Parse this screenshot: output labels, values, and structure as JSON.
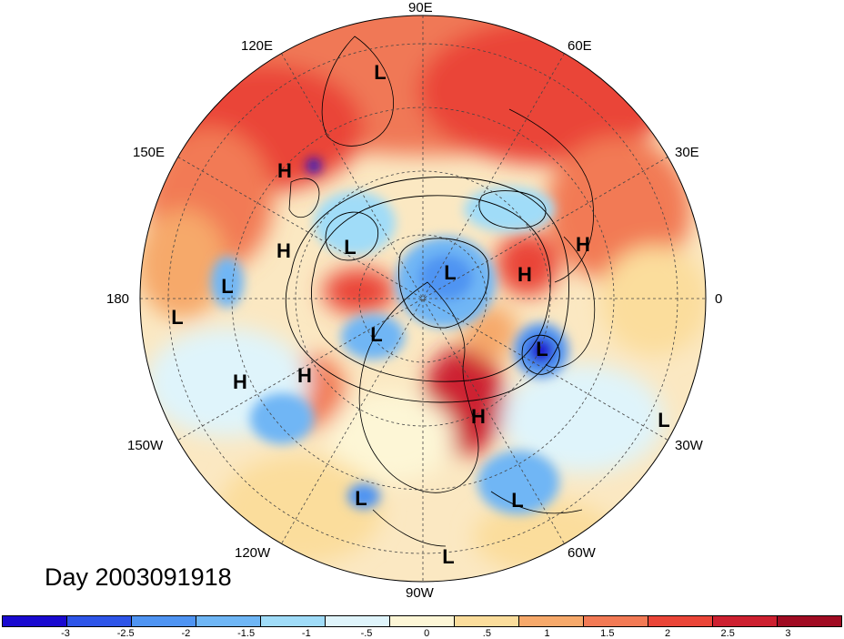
{
  "longitude_labels": {
    "lon_90e": "90E",
    "lon_120e": "120E",
    "lon_60e": "60E",
    "lon_150e": "150E",
    "lon_30e": "30E",
    "lon_180": "180",
    "lon_0": "0",
    "lon_150w": "150W",
    "lon_30w": "30W",
    "lon_120w": "120W",
    "lon_60w": "60W",
    "lon_90w": "90W"
  },
  "pressure_centers": [
    {
      "type": "L",
      "id": "l-siberia"
    },
    {
      "type": "H",
      "id": "h-east-siberia"
    },
    {
      "type": "L",
      "id": "l-bering-north"
    },
    {
      "type": "H",
      "id": "h-north-pacific"
    },
    {
      "type": "L",
      "id": "l-north-pacific"
    },
    {
      "type": "L",
      "id": "l-dateline"
    },
    {
      "type": "H",
      "id": "h-gulf-alaska"
    },
    {
      "type": "H",
      "id": "h-central-pacific"
    },
    {
      "type": "L",
      "id": "l-arctic-canada"
    },
    {
      "type": "L",
      "id": "l-arctic-pole"
    },
    {
      "type": "H",
      "id": "h-scandinavia"
    },
    {
      "type": "H",
      "id": "h-russia"
    },
    {
      "type": "L",
      "id": "l-north-atlantic"
    },
    {
      "type": "H",
      "id": "h-eastern-canada"
    },
    {
      "type": "L",
      "id": "l-east-atlantic"
    },
    {
      "type": "L",
      "id": "l-mexico"
    },
    {
      "type": "L",
      "id": "l-caribbean"
    },
    {
      "type": "L",
      "id": "l-south-america"
    }
  ],
  "date_text": "Day 2003091918",
  "colorbar": {
    "colors": [
      "#1a0ad0",
      "#2e55e8",
      "#4f94f2",
      "#6fb6f5",
      "#a0dcf8",
      "#dff4fb",
      "#fdf6d6",
      "#fbdd9c",
      "#f6a96b",
      "#f27a55",
      "#ea4538",
      "#cd2030",
      "#a00b22"
    ],
    "tick_labels": [
      "-3",
      "-2.5",
      "-2",
      "-1.5",
      "-1",
      "-.5",
      "0",
      ".5",
      "1",
      "1.5",
      "2",
      "2.5",
      "3"
    ]
  }
}
